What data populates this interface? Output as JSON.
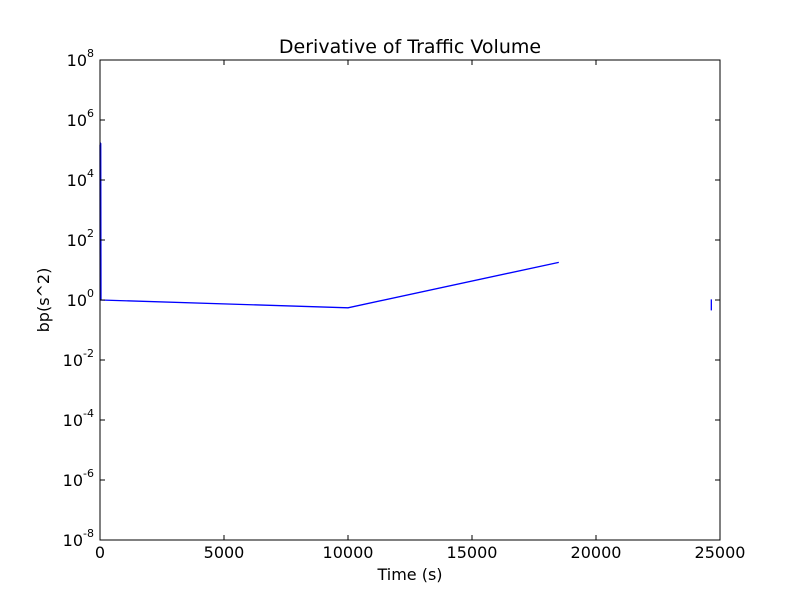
{
  "chart_data": {
    "type": "line",
    "title": "Derivative of Traffic Volume",
    "xlabel": "Time (s)",
    "ylabel": "bp(s^2)",
    "xlim": [
      0,
      25000
    ],
    "ylim": [
      1e-08,
      100000000.0
    ],
    "yscale": "log",
    "grid": false,
    "x_ticks": [
      "0",
      "5000",
      "10000",
      "15000",
      "20000",
      "25000"
    ],
    "y_ticks": [
      {
        "base": "10",
        "exp": "-8"
      },
      {
        "base": "10",
        "exp": "-6"
      },
      {
        "base": "10",
        "exp": "-4"
      },
      {
        "base": "10",
        "exp": "-2"
      },
      {
        "base": "10",
        "exp": "0"
      },
      {
        "base": "10",
        "exp": "2"
      },
      {
        "base": "10",
        "exp": "4"
      },
      {
        "base": "10",
        "exp": "6"
      },
      {
        "base": "10",
        "exp": "8"
      }
    ],
    "series_color": "#0000ff",
    "series": [
      {
        "segments": [
          [
            {
              "x": 0,
              "y": 150000
            },
            {
              "x": 5,
              "y": 1.0
            },
            {
              "x": 10,
              "y": 180000
            },
            {
              "x": 15,
              "y": 1.0
            },
            {
              "x": 20,
              "y": 160000
            },
            {
              "x": 25,
              "y": 1.0
            },
            {
              "x": 30,
              "y": 170000
            },
            {
              "x": 40,
              "y": 1.0
            },
            {
              "x": 10000,
              "y": 0.55
            },
            {
              "x": 18500,
              "y": 18
            }
          ],
          [
            {
              "x": 24650,
              "y": 0.45
            },
            {
              "x": 24650,
              "y": 1.05
            }
          ]
        ]
      }
    ]
  }
}
